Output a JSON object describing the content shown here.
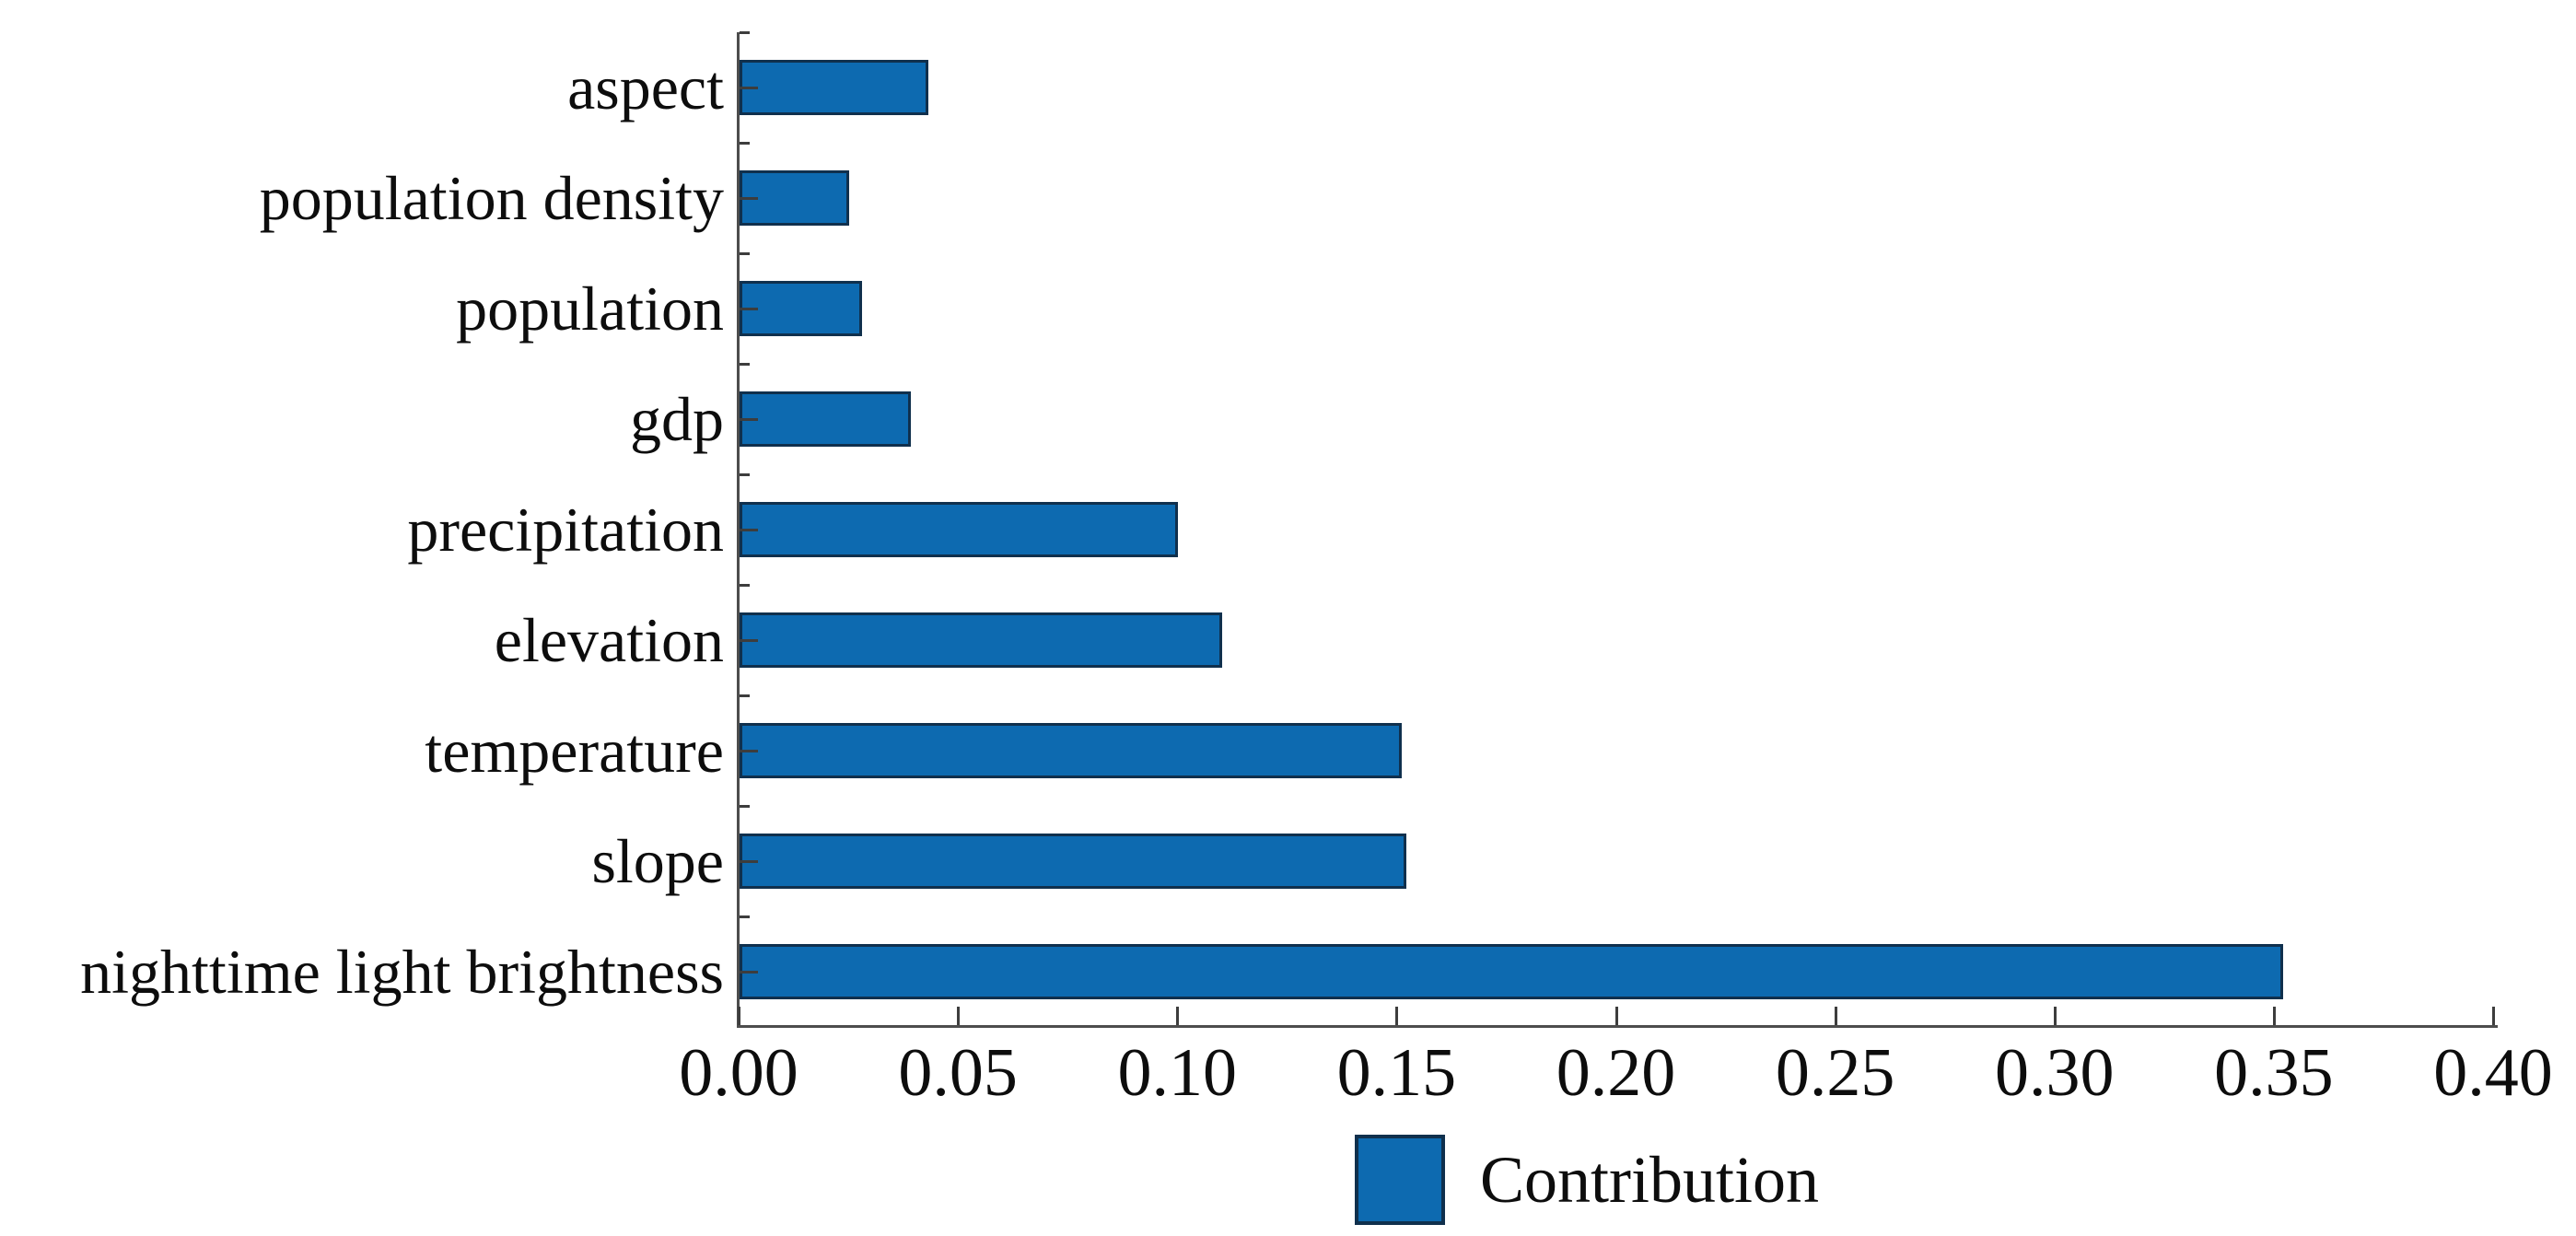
{
  "chart_data": {
    "type": "bar",
    "orientation": "horizontal",
    "title": "",
    "xlabel": "",
    "ylabel": "",
    "categories_top_to_bottom": [
      "aspect",
      "population density",
      "population",
      "gdp",
      "precipitation",
      "elevation",
      "temperature",
      "slope",
      "nighttime light brightness"
    ],
    "values": [
      0.043,
      0.025,
      0.028,
      0.039,
      0.1,
      0.11,
      0.151,
      0.152,
      0.352
    ],
    "series_name": "Contribution",
    "xlim": [
      0.0,
      0.4
    ],
    "x_tick_values": [
      0.0,
      0.05,
      0.1,
      0.15,
      0.2,
      0.25,
      0.3,
      0.35,
      0.4
    ],
    "x_tick_labels": [
      "0.00",
      "0.05",
      "0.10",
      "0.15",
      "0.20",
      "0.25",
      "0.30",
      "0.35",
      "0.40"
    ],
    "grid": false,
    "tick_direction": "in",
    "legend": {
      "label": "Contribution",
      "position": "bottom-center"
    },
    "colors": {
      "bar_fill": "#0d6ab0",
      "bar_edge": "#10304d",
      "axis": "#4d4d4d",
      "text": "#0d0d0d",
      "background": "#ffffff"
    }
  }
}
